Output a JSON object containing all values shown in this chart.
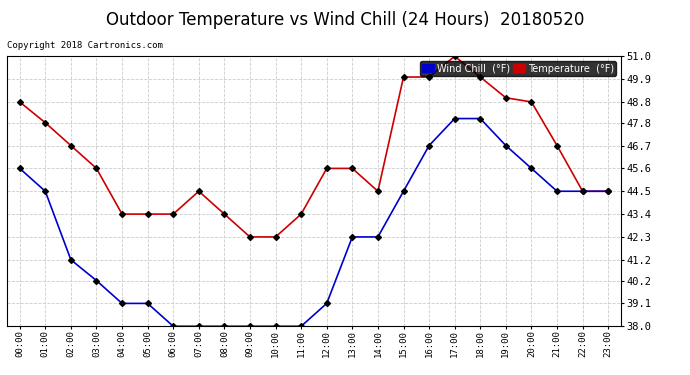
{
  "title": "Outdoor Temperature vs Wind Chill (24 Hours)  20180520",
  "copyright": "Copyright 2018 Cartronics.com",
  "hours": [
    "00:00",
    "01:00",
    "02:00",
    "03:00",
    "04:00",
    "05:00",
    "06:00",
    "07:00",
    "08:00",
    "09:00",
    "10:00",
    "11:00",
    "12:00",
    "13:00",
    "14:00",
    "15:00",
    "16:00",
    "17:00",
    "18:00",
    "19:00",
    "20:00",
    "21:00",
    "22:00",
    "23:00"
  ],
  "temperature": [
    48.8,
    47.8,
    46.7,
    45.6,
    43.4,
    43.4,
    43.4,
    44.5,
    43.4,
    42.3,
    42.3,
    43.4,
    45.6,
    45.6,
    44.5,
    50.0,
    50.0,
    51.0,
    50.0,
    49.0,
    48.8,
    46.7,
    44.5,
    44.5
  ],
  "wind_chill": [
    45.6,
    44.5,
    41.2,
    40.2,
    39.1,
    39.1,
    38.0,
    38.0,
    38.0,
    38.0,
    38.0,
    38.0,
    39.1,
    42.3,
    42.3,
    44.5,
    46.7,
    48.0,
    48.0,
    46.7,
    45.6,
    44.5,
    44.5,
    44.5
  ],
  "temp_color": "#cc0000",
  "wind_chill_color": "#0000cc",
  "bg_color": "#ffffff",
  "plot_bg_color": "#ffffff",
  "grid_color": "#cccccc",
  "ylim": [
    38.0,
    51.0
  ],
  "yticks": [
    38.0,
    39.1,
    40.2,
    41.2,
    42.3,
    43.4,
    44.5,
    45.6,
    46.7,
    47.8,
    48.8,
    49.9,
    51.0
  ],
  "title_fontsize": 12,
  "legend_wind_label": "Wind Chill  (°F)",
  "legend_temp_label": "Temperature  (°F)"
}
